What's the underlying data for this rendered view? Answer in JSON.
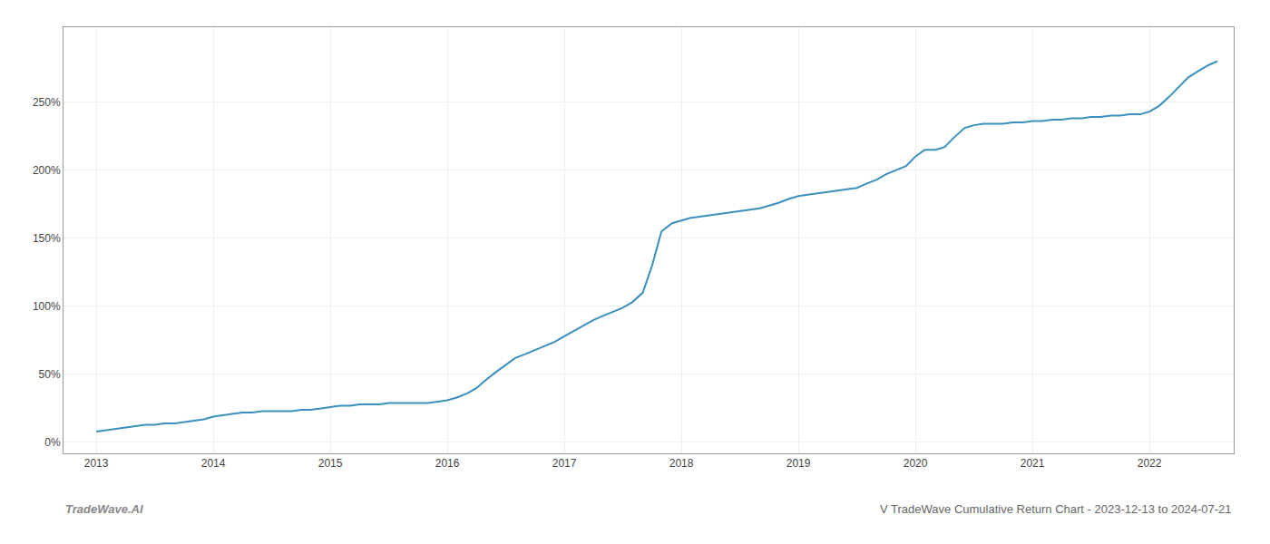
{
  "chart_data": {
    "type": "line",
    "title": "V TradeWave Cumulative Return Chart - 2023-12-13 to 2024-07-21",
    "annotations": [
      "TradeWave.AI"
    ],
    "color": "#3a8fbf",
    "grid": true,
    "x": [
      2013.0,
      2013.08,
      2013.17,
      2013.25,
      2013.33,
      2013.42,
      2013.5,
      2013.58,
      2013.67,
      2013.75,
      2013.83,
      2013.92,
      2014.0,
      2014.08,
      2014.17,
      2014.25,
      2014.33,
      2014.42,
      2014.5,
      2014.58,
      2014.67,
      2014.75,
      2014.83,
      2014.92,
      2015.0,
      2015.08,
      2015.17,
      2015.25,
      2015.33,
      2015.42,
      2015.5,
      2015.58,
      2015.67,
      2015.75,
      2015.83,
      2015.92,
      2016.0,
      2016.08,
      2016.17,
      2016.25,
      2016.33,
      2016.42,
      2016.5,
      2016.58,
      2016.67,
      2016.75,
      2016.83,
      2016.92,
      2017.0,
      2017.08,
      2017.17,
      2017.25,
      2017.33,
      2017.42,
      2017.5,
      2017.58,
      2017.67,
      2017.75,
      2017.83,
      2017.92,
      2018.0,
      2018.08,
      2018.17,
      2018.25,
      2018.33,
      2018.42,
      2018.5,
      2018.58,
      2018.67,
      2018.75,
      2018.83,
      2018.92,
      2019.0,
      2019.08,
      2019.17,
      2019.25,
      2019.33,
      2019.42,
      2019.5,
      2019.58,
      2019.67,
      2019.75,
      2019.83,
      2019.92,
      2020.0,
      2020.08,
      2020.17,
      2020.25,
      2020.33,
      2020.42,
      2020.5,
      2020.58,
      2020.67,
      2020.75,
      2020.83,
      2020.92,
      2021.0,
      2021.08,
      2021.17,
      2021.25,
      2021.33,
      2021.42,
      2021.5,
      2021.58,
      2021.67,
      2021.75,
      2021.83,
      2021.92,
      2022.0,
      2022.08,
      2022.17,
      2022.25,
      2022.33,
      2022.42,
      2022.5,
      2022.58
    ],
    "values": [
      8,
      9,
      10,
      11,
      12,
      13,
      13,
      14,
      14,
      15,
      16,
      17,
      19,
      20,
      21,
      22,
      22,
      23,
      23,
      23,
      23,
      24,
      24,
      25,
      26,
      27,
      27,
      28,
      28,
      28,
      29,
      29,
      29,
      29,
      29,
      30,
      31,
      33,
      36,
      40,
      46,
      52,
      57,
      62,
      65,
      68,
      71,
      74,
      78,
      82,
      86,
      90,
      93,
      96,
      99,
      103,
      110,
      130,
      155,
      161,
      163,
      165,
      166,
      167,
      168,
      169,
      170,
      171,
      172,
      174,
      176,
      179,
      181,
      182,
      183,
      184,
      185,
      186,
      187,
      190,
      193,
      197,
      200,
      203,
      210,
      215,
      215,
      217,
      224,
      231,
      233,
      234,
      234,
      234,
      235,
      235,
      236,
      236,
      237,
      237,
      238,
      238,
      239,
      239,
      240,
      240,
      241,
      241,
      243,
      247,
      254,
      261,
      268,
      273,
      277,
      280
    ],
    "xlim": [
      2012.72,
      2022.72
    ],
    "xticks": [
      2013,
      2014,
      2015,
      2016,
      2017,
      2018,
      2019,
      2020,
      2021,
      2022
    ],
    "ylim": [
      -8,
      305
    ],
    "yticks": [
      {
        "value": 0,
        "label": "0%"
      },
      {
        "value": 50,
        "label": "50%"
      },
      {
        "value": 100,
        "label": "100%"
      },
      {
        "value": 150,
        "label": "150%"
      },
      {
        "value": 200,
        "label": "200%"
      },
      {
        "value": 250,
        "label": "250%"
      }
    ]
  }
}
